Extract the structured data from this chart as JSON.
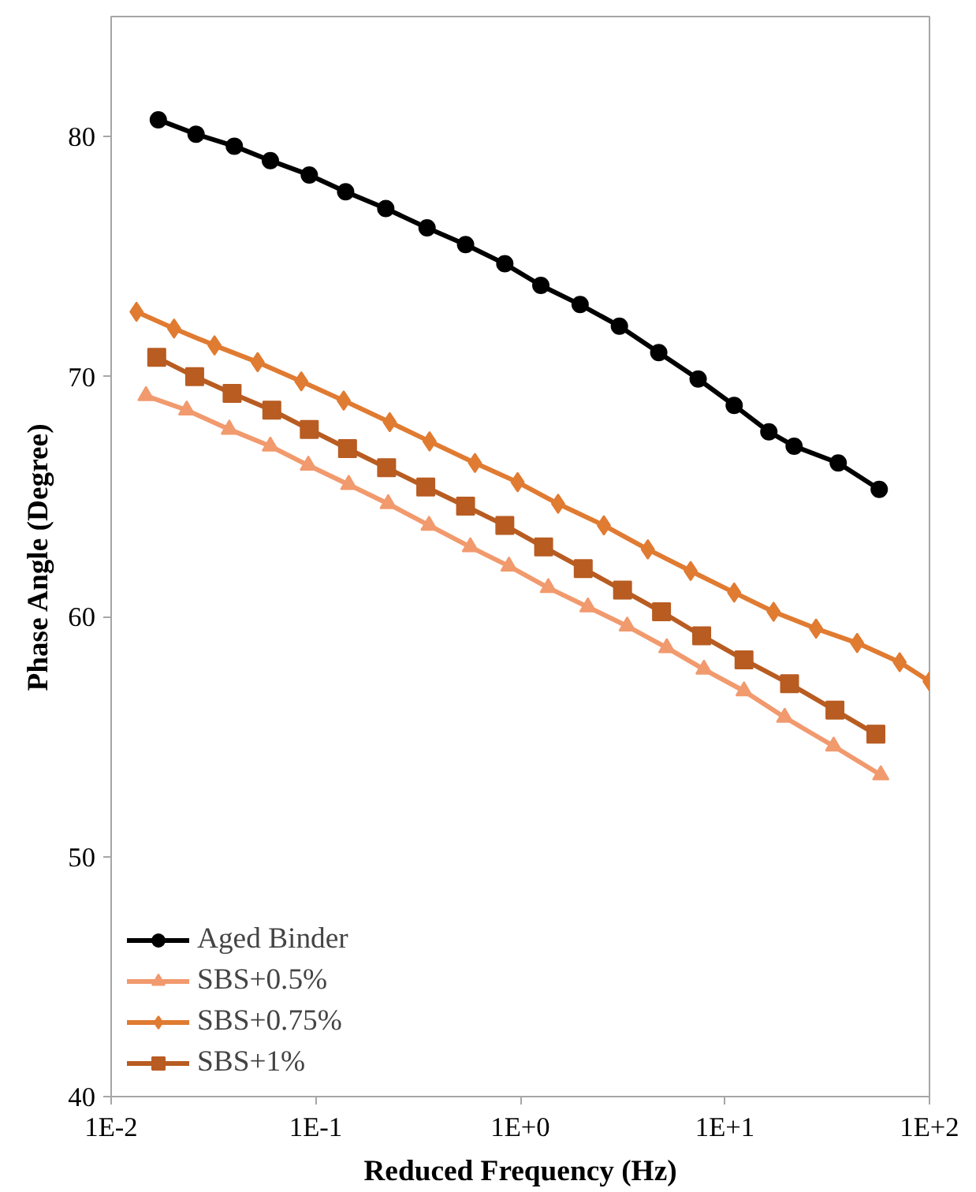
{
  "chart_data": {
    "type": "line",
    "xlabel": "Reduced Frequency (Hz)",
    "ylabel": "Phase Angle (Degree)",
    "log": "x",
    "xlim": [
      0.01,
      100
    ],
    "ylim": [
      40,
      85
    ],
    "xticks": [
      {
        "value": 0.01,
        "label": "1E-2"
      },
      {
        "value": 0.1,
        "label": "1E-1"
      },
      {
        "value": 1,
        "label": "1E+0"
      },
      {
        "value": 10,
        "label": "1E+1"
      },
      {
        "value": 100,
        "label": "1E+2"
      }
    ],
    "yticks": [
      40,
      50,
      60,
      70,
      80
    ],
    "grid": false,
    "legend": "bottom left",
    "line_style": "solid",
    "series": [
      {
        "name": "Aged Binder",
        "color": "#000000",
        "marker": "circle",
        "x": [
          0.017,
          0.026,
          0.04,
          0.06,
          0.093,
          0.14,
          0.22,
          0.35,
          0.54,
          0.84,
          1.26,
          1.96,
          3.05,
          4.75,
          7.4,
          11.1,
          16.4,
          21.8,
          35.8,
          56.8
        ],
        "values": [
          80.7,
          80.1,
          79.6,
          79.0,
          78.4,
          77.7,
          77.0,
          76.2,
          75.5,
          74.7,
          73.8,
          73.0,
          72.1,
          71.0,
          69.9,
          68.8,
          67.7,
          67.1,
          66.4,
          65.3
        ]
      },
      {
        "name": "SBS+0.5%",
        "color": "#f19a6e",
        "marker": "triangle",
        "x": [
          0.0148,
          0.0234,
          0.0378,
          0.06,
          0.092,
          0.145,
          0.226,
          0.358,
          0.57,
          0.88,
          1.37,
          2.14,
          3.33,
          5.2,
          7.9,
          12.4,
          19.6,
          34,
          57.8
        ],
        "values": [
          69.2,
          68.6,
          67.8,
          67.1,
          66.3,
          65.5,
          64.7,
          63.8,
          62.9,
          62.1,
          61.2,
          60.4,
          59.6,
          58.7,
          57.8,
          56.9,
          55.8,
          54.6,
          53.4
        ]
      },
      {
        "name": "SBS+0.75%",
        "color": "#e07b32",
        "marker": "diamond",
        "x": [
          0.0133,
          0.0203,
          0.032,
          0.052,
          0.085,
          0.137,
          0.23,
          0.36,
          0.6,
          0.97,
          1.53,
          2.56,
          4.2,
          6.8,
          11.1,
          17.3,
          27.9,
          44.3,
          71.5,
          100
        ],
        "values": [
          72.7,
          72.0,
          71.3,
          70.6,
          69.8,
          69.0,
          68.1,
          67.3,
          66.4,
          65.6,
          64.7,
          63.8,
          62.8,
          61.9,
          61.0,
          60.2,
          59.5,
          58.9,
          58.1,
          57.3
        ]
      },
      {
        "name": "SBS+1%",
        "color": "#b85c22",
        "marker": "square",
        "x": [
          0.0167,
          0.0256,
          0.039,
          0.061,
          0.093,
          0.143,
          0.222,
          0.345,
          0.54,
          0.84,
          1.3,
          2.03,
          3.16,
          4.9,
          7.7,
          12.4,
          20.7,
          34.5,
          54.7
        ],
        "values": [
          70.8,
          70.0,
          69.3,
          68.6,
          67.8,
          67.0,
          66.2,
          65.4,
          64.6,
          63.8,
          62.9,
          62.0,
          61.1,
          60.2,
          59.2,
          58.2,
          57.2,
          56.1,
          55.1
        ]
      }
    ]
  }
}
